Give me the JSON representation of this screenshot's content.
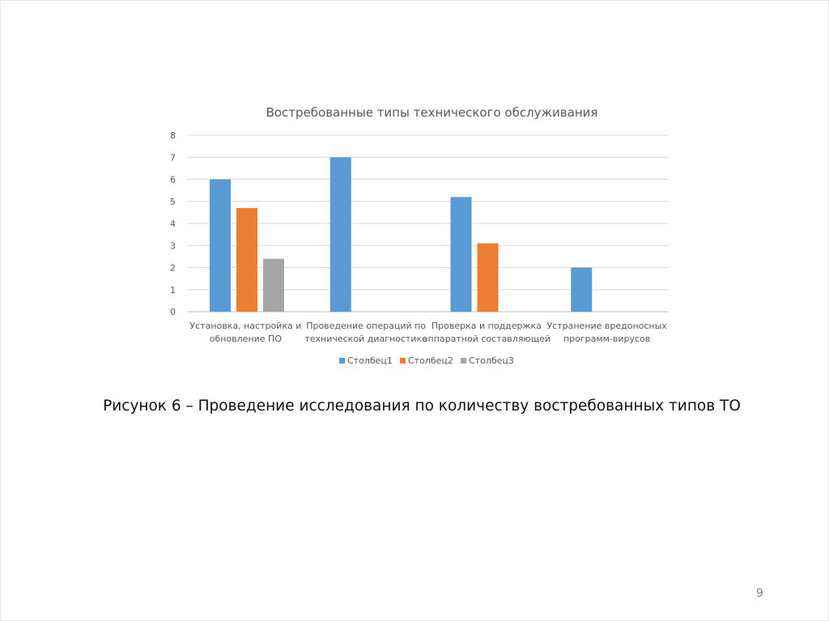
{
  "chart_data": {
    "type": "bar",
    "title": "Востребованные типы технического обслуживания",
    "categories": [
      [
        "Установка, настройка и",
        "обновление ПО"
      ],
      [
        "Проведение операций по",
        "технической диагностике"
      ],
      [
        "Проверка и поддержка",
        "аппаратной составляющей"
      ],
      [
        "Устранение вредоносных",
        "программ-вирусов"
      ]
    ],
    "series": [
      {
        "name": "Столбец1",
        "color": "#5b9bd5",
        "values": [
          6,
          7,
          5.2,
          2
        ]
      },
      {
        "name": "Столбец2",
        "color": "#ed7d31",
        "values": [
          4.7,
          null,
          3.1,
          null
        ]
      },
      {
        "name": "Столбец3",
        "color": "#a5a5a5",
        "values": [
          2.4,
          null,
          null,
          null
        ]
      }
    ],
    "ylim": [
      0,
      8
    ],
    "yticks": [
      0,
      1,
      2,
      3,
      4,
      5,
      6,
      7,
      8
    ],
    "grid": true,
    "legend_position": "bottom"
  },
  "caption": "Рисунок 6 – Проведение исследования по количеству востребованных типов ТО",
  "page_number": "9"
}
